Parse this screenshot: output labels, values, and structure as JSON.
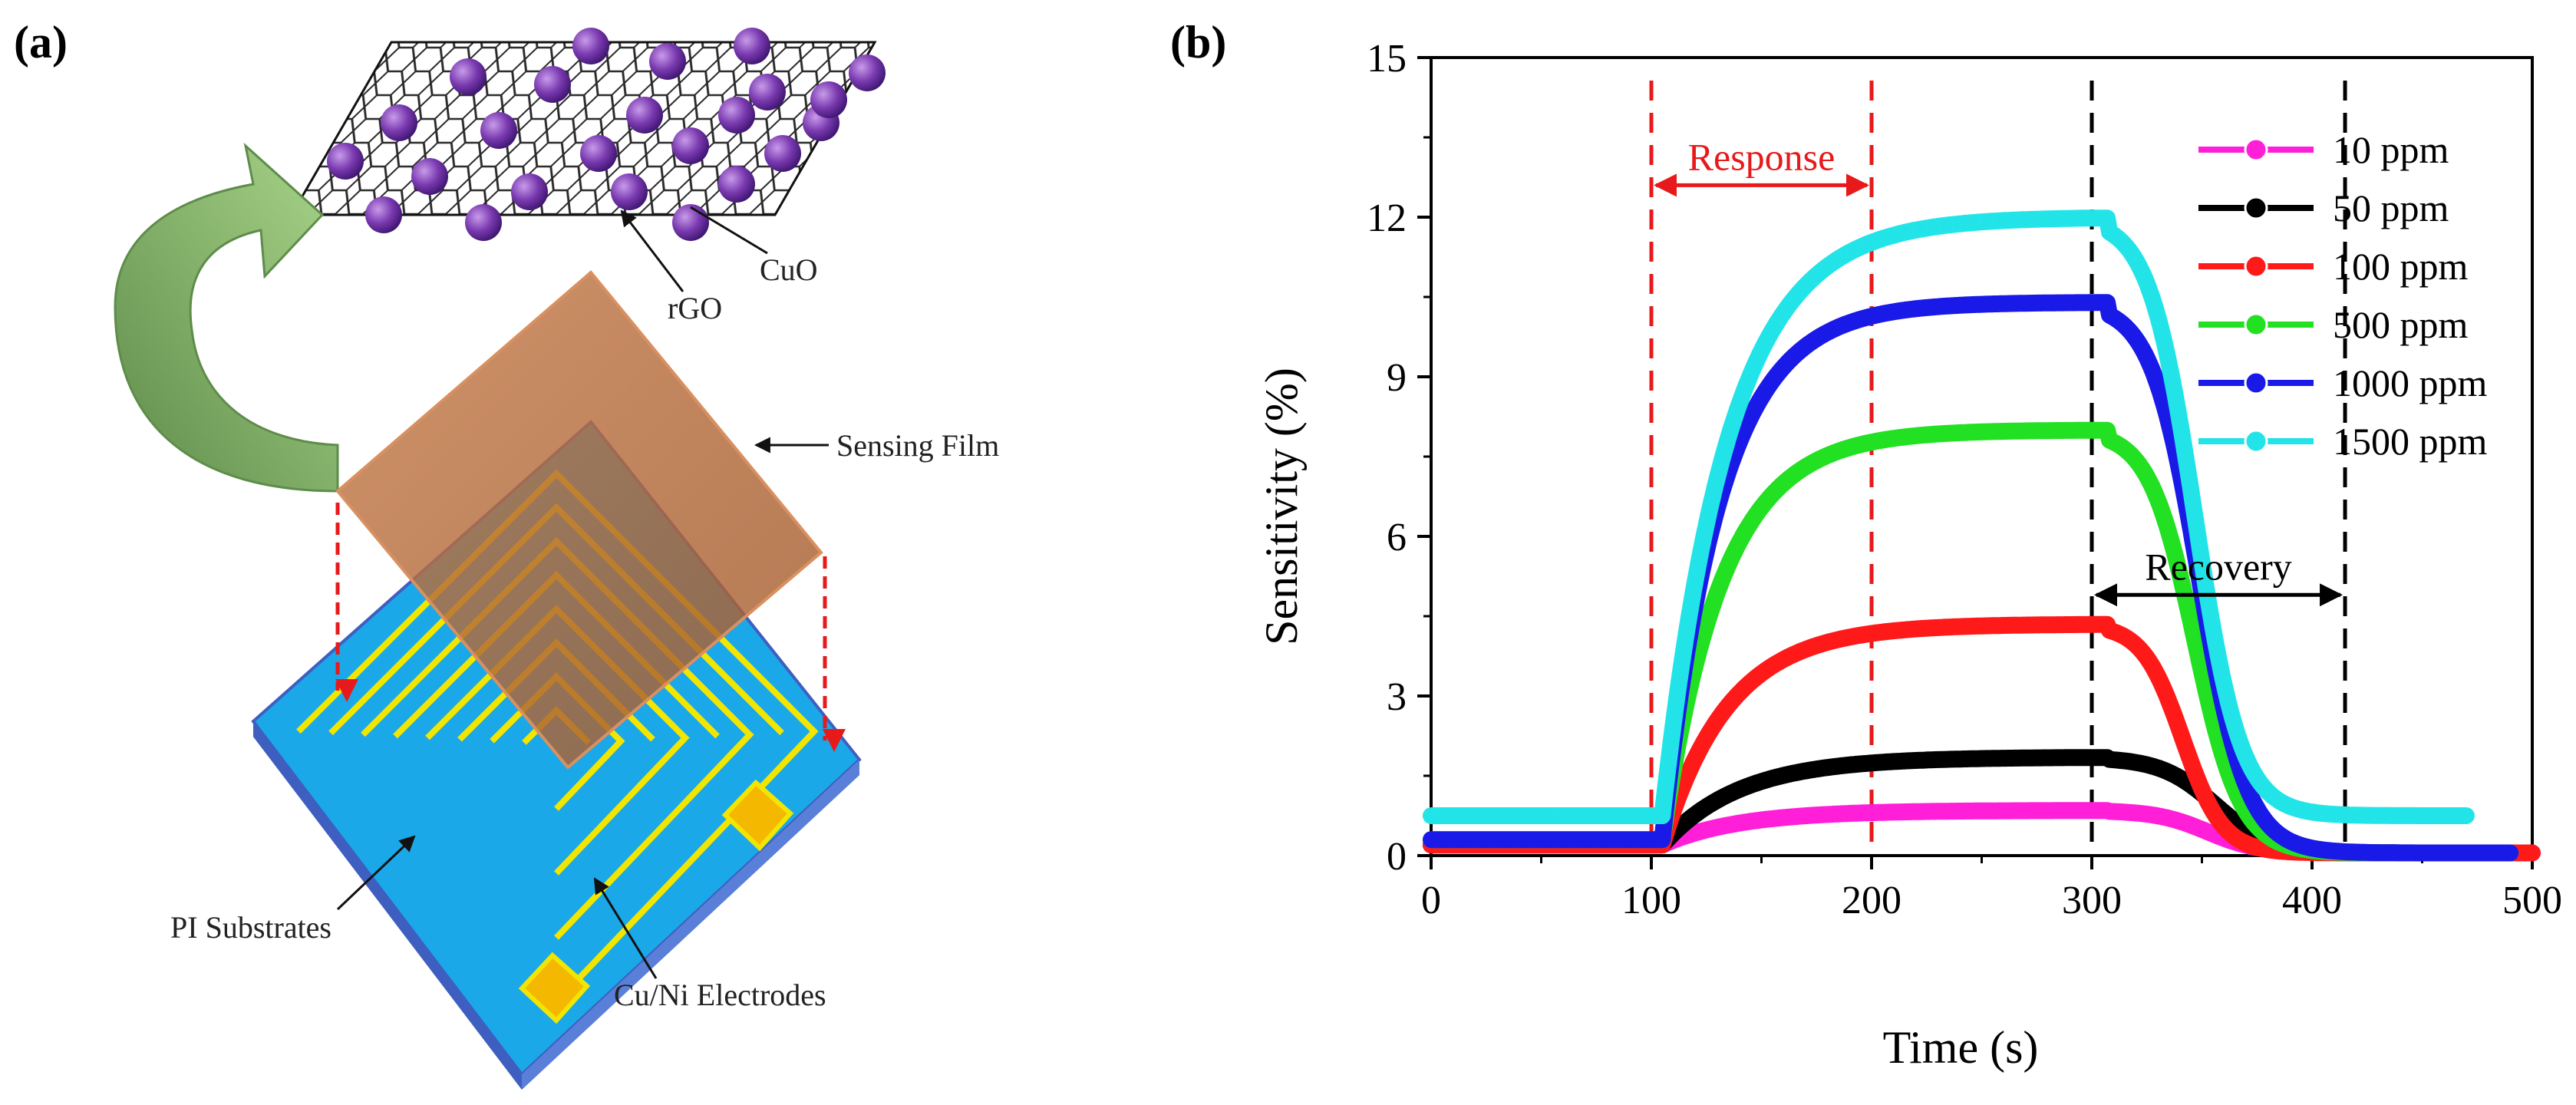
{
  "panel_a": {
    "label": "(a)",
    "callouts": {
      "cuo": "CuO",
      "rgo": "rGO",
      "sensing_film": "Sensing Film",
      "pi_substrates": "PI Substrates",
      "electrodes": "Cu/Ni Electrodes"
    },
    "colors": {
      "film": "#B66A3C",
      "substrate": "#1BA8E8",
      "substrate_edge": "#4C6FD0",
      "electrode": "#F2E600",
      "pad": "#F5B800",
      "sphere": "#7A3AB0",
      "arrow": "#8DB86A",
      "guide": "#E8191A"
    }
  },
  "chart_data": {
    "label": "(b)",
    "type": "line",
    "xlabel": "Time (s)",
    "ylabel": "Sensitivity (%)",
    "xlim": [
      0,
      500
    ],
    "ylim": [
      0,
      15
    ],
    "xticks": [
      0,
      100,
      200,
      300,
      400,
      500
    ],
    "xtick_labels": [
      "0",
      "100",
      "200",
      "300",
      "400",
      "500"
    ],
    "yticks": [
      0,
      3,
      6,
      9,
      12,
      15
    ],
    "ytick_labels": [
      "0",
      "3",
      "6",
      "9",
      "12",
      "15"
    ],
    "legend_position": "top-right",
    "annotations": [
      {
        "text": "Response",
        "from_x": 100,
        "to_x": 200,
        "y": 12.6,
        "color": "#E8191A"
      },
      {
        "text": "Recovery",
        "from_x": 300,
        "to_x": 415,
        "y": 4.9,
        "color": "#000000"
      }
    ],
    "guide_lines": [
      {
        "x": 100,
        "color": "#E8191A"
      },
      {
        "x": 200,
        "color": "#E8191A"
      },
      {
        "x": 300,
        "color": "#000000"
      },
      {
        "x": 415,
        "color": "#000000"
      }
    ],
    "series": [
      {
        "name": "10 ppm",
        "color": "#FF1FD8",
        "baseline": 0.0,
        "peak": 0.85,
        "pre_level": 0.2,
        "tau_rise": 35,
        "tau_decay": 28,
        "end_x": 500
      },
      {
        "name": "50 ppm",
        "color": "#000000",
        "baseline": 0.0,
        "peak": 1.85,
        "pre_level": 0.2,
        "tau_rise": 35,
        "tau_decay": 30,
        "end_x": 440
      },
      {
        "name": "100 ppm",
        "color": "#FF1A1A",
        "baseline": 0.0,
        "peak": 4.35,
        "pre_level": 0.2,
        "tau_rise": 30,
        "tau_decay": 22,
        "end_x": 500
      },
      {
        "name": "500 ppm",
        "color": "#22E022",
        "baseline": 0.0,
        "peak": 8.0,
        "pre_level": 0.3,
        "tau_rise": 27,
        "tau_decay": 25,
        "end_x": 490
      },
      {
        "name": "1000 ppm",
        "color": "#1A1AE8",
        "baseline": 0.0,
        "peak": 10.4,
        "pre_level": 0.3,
        "tau_rise": 26,
        "tau_decay": 26,
        "end_x": 490
      },
      {
        "name": "1500 ppm",
        "color": "#22E4E8",
        "baseline": 0.7,
        "peak": 12.0,
        "pre_level": 0.75,
        "tau_rise": 30,
        "tau_decay": 25,
        "end_x": 470
      }
    ]
  }
}
